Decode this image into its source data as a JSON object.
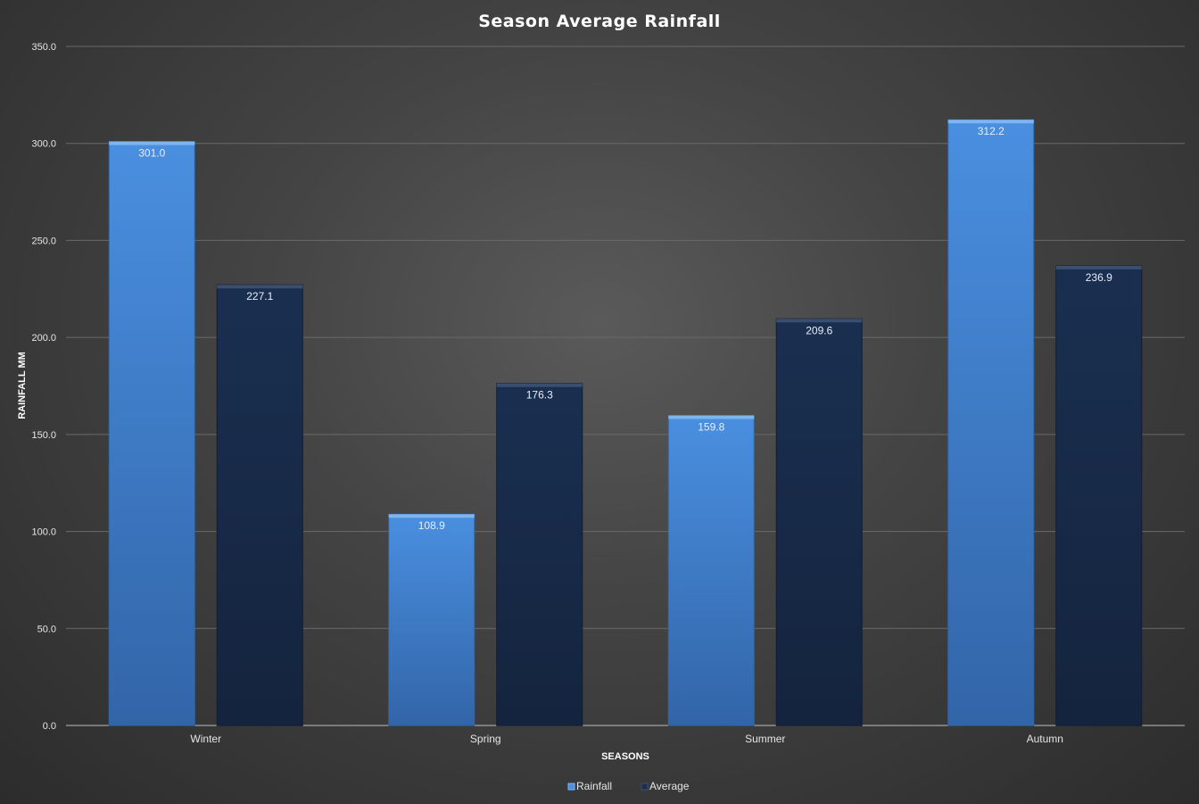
{
  "chart_data": {
    "type": "bar",
    "title": "Season Average Rainfall",
    "xlabel": "SEASONS",
    "ylabel": "RAINFALL MM",
    "categories": [
      "Winter",
      "Spring",
      "Summer",
      "Autumn"
    ],
    "series": [
      {
        "name": "Rainfall",
        "values": [
          301.0,
          108.9,
          159.8,
          312.2
        ],
        "color": "#3f86d8"
      },
      {
        "name": "Average",
        "values": [
          227.1,
          176.3,
          209.6,
          236.9
        ],
        "color": "#172a48"
      }
    ],
    "ylim": [
      0,
      350
    ],
    "yticks": [
      0,
      50,
      100,
      150,
      200,
      250,
      300,
      350
    ],
    "tick_decimals": 1,
    "grid": true,
    "legend": "bottom",
    "data_labels": true
  }
}
